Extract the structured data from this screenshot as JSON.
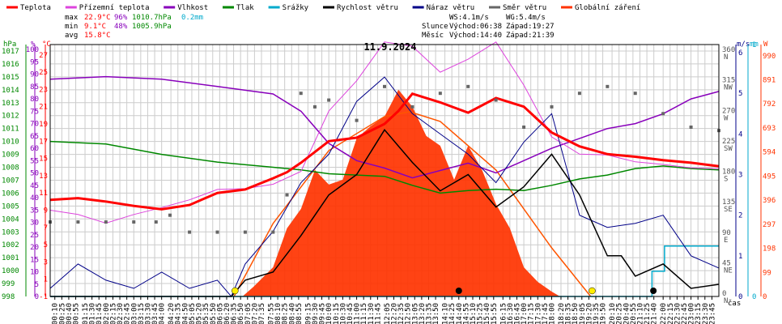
{
  "chart_data": {
    "type": "line",
    "title": "11.9.2024",
    "legend": [
      {
        "label": "Teplota",
        "color": "#ff0000"
      },
      {
        "label": "Přízemní teplota",
        "color": "#dd44dd"
      },
      {
        "label": "Vlhkost",
        "color": "#8800bb"
      },
      {
        "label": "Tlak",
        "color": "#008800"
      },
      {
        "label": "Srážky",
        "color": "#00aacc"
      },
      {
        "label": "Rychlost větru",
        "color": "#000000"
      },
      {
        "label": "Náraz větru",
        "color": "#000088"
      },
      {
        "label": "Směr větru",
        "color": "#666666"
      },
      {
        "label": "Globální záření",
        "color": "#ff3300"
      }
    ],
    "stats": {
      "max": {
        "label": "max",
        "temp": "22.9°C",
        "hum": "96%",
        "press": "1010.7hPa",
        "rain": "0.2mm"
      },
      "min": {
        "label": "min",
        "temp": "9.1°C",
        "hum": "48%",
        "press": "1005.9hPa"
      },
      "avg": {
        "label": "avg",
        "temp": "15.8°C"
      }
    },
    "wind_info": {
      "ws": "WS:4.1m/s",
      "wg": "WG:5.4m/s"
    },
    "sun": {
      "label": "Slunce",
      "rise": "Východ:06:38",
      "set": "Západ:19:27"
    },
    "moon": {
      "label": "Měsíc",
      "rise": "Východ:14:40",
      "set": "Západ:21:39"
    },
    "axes": {
      "hpa": {
        "title": "hPa",
        "ticks": [
          998,
          999,
          1000,
          1001,
          1002,
          1003,
          1004,
          1005,
          1006,
          1007,
          1008,
          1009,
          1010,
          1011,
          1012,
          1013,
          1014,
          1015,
          1016,
          1017
        ]
      },
      "pct": {
        "title": "%",
        "ticks": [
          0,
          5,
          10,
          15,
          20,
          25,
          30,
          35,
          40,
          45,
          50,
          55,
          60,
          65,
          70,
          75,
          80,
          85,
          90,
          95,
          100
        ]
      },
      "temp": {
        "title": "°C",
        "ticks": [
          -1,
          1,
          3,
          5,
          7,
          9,
          11,
          13,
          15,
          17,
          19,
          21,
          23,
          25,
          27
        ]
      },
      "dir": {
        "title": "m/s",
        "ticks": [
          {
            "deg": "0",
            "dir": "N"
          },
          {
            "deg": "45",
            "dir": "NE"
          },
          {
            "deg": "90",
            "dir": "E"
          },
          {
            "deg": "135",
            "dir": "SE"
          },
          {
            "deg": "180",
            "dir": "S"
          },
          {
            "deg": "225",
            "dir": "SW"
          },
          {
            "deg": "270",
            "dir": "W"
          },
          {
            "deg": "315",
            "dir": "NW"
          },
          {
            "deg": "360",
            "dir": "N"
          }
        ]
      },
      "ms": {
        "ticks": [
          0,
          1,
          2,
          3,
          4,
          5,
          6
        ]
      },
      "mm": {
        "title": "mm",
        "ticks": [
          0,
          1
        ]
      },
      "w": {
        "title": "W",
        "ticks": [
          0,
          99,
          198,
          297,
          396,
          495,
          594,
          693,
          792,
          891,
          990
        ]
      },
      "x_label": "čas"
    },
    "x_ticks": [
      "00:10",
      "00:25",
      "00:40",
      "00:55",
      "01:15",
      "01:30",
      "01:45",
      "02:00",
      "02:15",
      "02:30",
      "02:45",
      "03:00",
      "03:15",
      "03:30",
      "03:45",
      "04:00",
      "04:20",
      "04:35",
      "04:50",
      "05:05",
      "05:20",
      "05:35",
      "05:50",
      "06:05",
      "06:20",
      "06:35",
      "06:50",
      "07:05",
      "07:20",
      "07:35",
      "07:55",
      "08:10",
      "08:25",
      "08:40",
      "08:55",
      "09:15",
      "09:30",
      "09:45",
      "10:00",
      "10:15",
      "10:30",
      "10:45",
      "11:00",
      "11:15",
      "11:30",
      "11:45",
      "12:05",
      "12:20",
      "12:35",
      "12:50",
      "13:05",
      "13:20",
      "13:35",
      "13:50",
      "14:10",
      "14:25",
      "14:40",
      "14:55",
      "15:10",
      "15:25",
      "15:40",
      "15:55",
      "16:15",
      "16:30",
      "16:45",
      "17:00",
      "17:15",
      "17:30",
      "17:45",
      "18:00",
      "18:20",
      "18:35",
      "18:50",
      "19:05",
      "19:20",
      "19:35",
      "19:50",
      "20:10",
      "20:25",
      "20:40",
      "20:55",
      "21:10",
      "21:25",
      "21:40",
      "22:00",
      "22:15",
      "22:30",
      "22:45",
      "23:00",
      "23:15",
      "23:30",
      "23:45"
    ],
    "series": {
      "temperature": {
        "hours": [
          0,
          1,
          2,
          3,
          4,
          5,
          6,
          7,
          8,
          8.5,
          9,
          10,
          11,
          12,
          12.5,
          13,
          14,
          15,
          16,
          17,
          18,
          19,
          20,
          21,
          22,
          23,
          24
        ],
        "values": [
          10.2,
          10.4,
          10.0,
          9.5,
          9.1,
          9.6,
          11.0,
          11.4,
          12.7,
          13.4,
          14.5,
          17.0,
          17.4,
          19.0,
          20.5,
          22.5,
          21.5,
          20.3,
          22.0,
          21.0,
          18.0,
          16.4,
          15.5,
          15.2,
          14.8,
          14.5,
          14.1
        ]
      },
      "ground_temperature": {
        "hours": [
          0,
          1,
          2,
          3,
          4,
          5,
          6,
          7,
          8,
          9,
          10,
          11,
          12,
          13,
          14,
          15,
          16,
          17,
          18,
          19,
          20,
          21,
          22,
          23,
          24
        ],
        "values": [
          9.0,
          8.5,
          7.5,
          8.5,
          9.3,
          10.2,
          11.4,
          11.5,
          12.0,
          13.5,
          20.5,
          24.0,
          28.5,
          28.0,
          25.0,
          26.5,
          28.5,
          23.5,
          17.5,
          15.5,
          15.4,
          14.6,
          14.3,
          13.9,
          13.8
        ]
      },
      "humidity": {
        "hours": [
          0,
          2,
          4,
          6,
          8,
          9,
          10,
          11,
          12,
          13,
          14,
          15,
          16,
          17,
          18,
          19,
          20,
          21,
          22,
          23,
          24
        ],
        "values": [
          88,
          89,
          88,
          85,
          82,
          75,
          62,
          55,
          52,
          48,
          51,
          54,
          50,
          55,
          60,
          64,
          68,
          70,
          74,
          80,
          83
        ]
      },
      "pressure": {
        "hours": [
          0,
          2,
          4,
          6,
          8,
          9,
          10,
          11,
          12,
          13,
          14,
          15,
          16,
          17,
          18,
          19,
          20,
          21,
          22,
          23,
          24
        ],
        "values": [
          1010.0,
          1009.8,
          1009.0,
          1008.4,
          1008.0,
          1007.8,
          1007.5,
          1007.4,
          1007.3,
          1006.6,
          1006.0,
          1006.2,
          1006.3,
          1006.2,
          1006.6,
          1007.1,
          1007.4,
          1007.9,
          1008.1,
          1007.9,
          1007.8
        ]
      },
      "precipitation": {
        "hours": [
          0,
          21.6,
          21.6,
          22.05,
          22.05,
          24
        ],
        "values": [
          0,
          0,
          0.1,
          0.1,
          0.2,
          0.2
        ]
      },
      "wind_speed": {
        "hours": [
          0,
          1,
          2,
          3,
          4,
          5,
          6,
          6.5,
          7,
          8,
          9,
          10,
          11,
          12,
          13,
          14,
          15,
          16,
          17,
          18,
          19,
          20,
          20.5,
          21,
          22,
          23,
          24
        ],
        "values": [
          0.0,
          0.0,
          0.0,
          0.0,
          0.0,
          0.0,
          0.0,
          0.0,
          0.4,
          0.6,
          1.5,
          2.5,
          3.0,
          4.1,
          3.3,
          2.6,
          3.0,
          2.2,
          2.7,
          3.5,
          2.5,
          1.0,
          1.0,
          0.5,
          0.8,
          0.2,
          0.3
        ]
      },
      "wind_gust": {
        "hours": [
          0,
          1,
          2,
          3,
          4,
          5,
          6,
          6.5,
          7,
          8,
          9,
          10,
          11,
          12,
          13,
          14,
          15,
          16,
          17,
          18,
          19,
          20,
          21,
          22,
          23,
          24
        ],
        "values": [
          0.2,
          0.8,
          0.4,
          0.2,
          0.6,
          0.2,
          0.4,
          0.0,
          0.8,
          1.6,
          2.8,
          3.5,
          4.8,
          5.4,
          4.5,
          4.0,
          3.5,
          2.8,
          3.8,
          4.5,
          2.0,
          1.7,
          1.8,
          2.0,
          1.0,
          0.7
        ]
      },
      "wind_direction": {
        "hours": [
          0,
          1,
          2,
          3,
          3.8,
          4.3,
          5,
          6,
          7,
          8,
          8.5,
          9,
          9.5,
          10,
          11,
          12,
          13,
          14,
          15,
          16,
          17,
          18,
          19,
          20,
          21,
          22,
          23,
          24
        ],
        "values": [
          110,
          110,
          110,
          110,
          110,
          120,
          95,
          95,
          95,
          95,
          150,
          300,
          280,
          290,
          260,
          310,
          280,
          300,
          310,
          290,
          250,
          280,
          300,
          310,
          300,
          270,
          250,
          245
        ]
      },
      "global_radiation": {
        "hours": [
          0,
          6.9,
          7.3,
          8,
          8.5,
          9,
          9.5,
          10,
          10.5,
          11,
          11.5,
          12,
          12.5,
          13,
          13.5,
          14,
          14.5,
          15,
          15.5,
          16,
          16.5,
          17,
          17.5,
          18,
          18.3,
          24
        ],
        "values": [
          0,
          0,
          40,
          120,
          280,
          360,
          520,
          460,
          480,
          650,
          700,
          740,
          850,
          780,
          660,
          620,
          480,
          620,
          520,
          380,
          280,
          120,
          60,
          20,
          0,
          0
        ]
      },
      "clear_sky_radiation": {
        "hours": [
          6.6,
          8,
          10,
          12,
          12.9,
          14,
          16,
          18,
          19.4
        ],
        "values": [
          0,
          300,
          600,
          740,
          760,
          720,
          520,
          200,
          0
        ]
      }
    }
  }
}
